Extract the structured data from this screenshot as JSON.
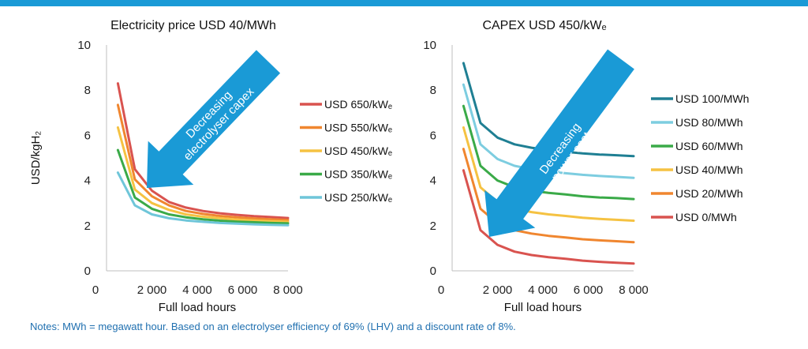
{
  "colors": {
    "top_bar": "#1a9ad6",
    "axis": "#bfbfbf",
    "arrow": "#1a9ad6"
  },
  "chart_data": [
    {
      "type": "line",
      "title": "Electricity price USD 40/MWh",
      "xlabel": "Full load hours",
      "ylabel": "USD/kgH₂",
      "xlim": [
        0,
        8000
      ],
      "ylim": [
        0,
        10
      ],
      "x_ticks": [
        {
          "value": 0,
          "label": "0"
        },
        {
          "value": 2000,
          "label": "2 000"
        },
        {
          "value": 4000,
          "label": "4 000"
        },
        {
          "value": 6000,
          "label": "6 000"
        },
        {
          "value": 8000,
          "label": "8 000"
        }
      ],
      "y_ticks": [
        {
          "value": 0,
          "label": "0"
        },
        {
          "value": 2,
          "label": "2"
        },
        {
          "value": 4,
          "label": "4"
        },
        {
          "value": 6,
          "label": "6"
        },
        {
          "value": 8,
          "label": "8"
        },
        {
          "value": 10,
          "label": "10"
        }
      ],
      "x": [
        500,
        1250,
        2000,
        2750,
        3500,
        4250,
        5000,
        5750,
        6500,
        7250,
        8000
      ],
      "series": [
        {
          "name": "USD 650/kWₑ",
          "color": "#d9534f",
          "values": [
            8.3,
            4.5,
            3.55,
            3.05,
            2.8,
            2.65,
            2.55,
            2.48,
            2.42,
            2.38,
            2.34
          ]
        },
        {
          "name": "USD 550/kWₑ",
          "color": "#f0862f",
          "values": [
            7.35,
            4.05,
            3.3,
            2.9,
            2.65,
            2.52,
            2.43,
            2.37,
            2.32,
            2.28,
            2.25
          ]
        },
        {
          "name": "USD 450/kWₑ",
          "color": "#f5c242",
          "values": [
            6.35,
            3.6,
            3.0,
            2.7,
            2.5,
            2.4,
            2.33,
            2.27,
            2.23,
            2.2,
            2.17
          ]
        },
        {
          "name": "USD 350/kWₑ",
          "color": "#3aaa48",
          "values": [
            5.35,
            3.25,
            2.75,
            2.5,
            2.37,
            2.28,
            2.22,
            2.18,
            2.15,
            2.12,
            2.1
          ]
        },
        {
          "name": "USD 250/kWₑ",
          "color": "#6fc6d9",
          "values": [
            4.35,
            2.9,
            2.5,
            2.33,
            2.23,
            2.17,
            2.12,
            2.09,
            2.06,
            2.04,
            2.02
          ]
        }
      ],
      "annotation": "Decreasing electrolyser capex"
    },
    {
      "type": "line",
      "title": "CAPEX USD 450/kWₑ",
      "xlabel": "Full load hours",
      "ylabel": "",
      "xlim": [
        0,
        8000
      ],
      "ylim": [
        0,
        10
      ],
      "x_ticks": [
        {
          "value": 0,
          "label": "0"
        },
        {
          "value": 2000,
          "label": "2 000"
        },
        {
          "value": 4000,
          "label": "4 000"
        },
        {
          "value": 6000,
          "label": "6 000"
        },
        {
          "value": 8000,
          "label": "8 000"
        }
      ],
      "y_ticks": [
        {
          "value": 0,
          "label": "0"
        },
        {
          "value": 2,
          "label": "2"
        },
        {
          "value": 4,
          "label": "4"
        },
        {
          "value": 6,
          "label": "6"
        },
        {
          "value": 8,
          "label": "8"
        },
        {
          "value": 10,
          "label": "10"
        }
      ],
      "x": [
        500,
        1250,
        2000,
        2750,
        3500,
        4250,
        5000,
        5750,
        6500,
        7250,
        8000
      ],
      "series": [
        {
          "name": "USD 100/MWh",
          "color": "#1f7f93",
          "values": [
            9.2,
            6.55,
            5.9,
            5.6,
            5.45,
            5.35,
            5.27,
            5.2,
            5.15,
            5.12,
            5.08
          ]
        },
        {
          "name": "USD 80/MWh",
          "color": "#7dcde0",
          "values": [
            8.25,
            5.6,
            4.95,
            4.65,
            4.5,
            4.4,
            4.32,
            4.25,
            4.2,
            4.16,
            4.12
          ]
        },
        {
          "name": "USD 60/MWh",
          "color": "#3aaa48",
          "values": [
            7.3,
            4.65,
            4.0,
            3.7,
            3.55,
            3.45,
            3.38,
            3.3,
            3.25,
            3.22,
            3.18
          ]
        },
        {
          "name": "USD 40/MWh",
          "color": "#f5c242",
          "values": [
            6.35,
            3.7,
            3.05,
            2.75,
            2.6,
            2.5,
            2.43,
            2.35,
            2.3,
            2.26,
            2.22
          ]
        },
        {
          "name": "USD 20/MWh",
          "color": "#f0862f",
          "values": [
            5.4,
            2.75,
            2.1,
            1.8,
            1.65,
            1.55,
            1.48,
            1.4,
            1.35,
            1.31,
            1.27
          ]
        },
        {
          "name": "USD 0/MWh",
          "color": "#d9534f",
          "values": [
            4.45,
            1.8,
            1.15,
            0.85,
            0.7,
            0.6,
            0.53,
            0.45,
            0.4,
            0.36,
            0.32
          ]
        }
      ],
      "annotation": "Decreasing power cost"
    }
  ],
  "notes": "Notes: MWh = megawatt hour. Based on an electrolyser efficiency of 69% (LHV) and a discount rate of 8%."
}
